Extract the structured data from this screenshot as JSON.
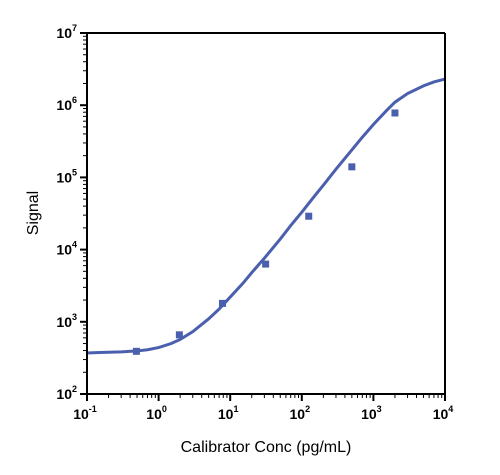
{
  "chart_data": {
    "type": "scatter",
    "xlabel": "Calibrator Conc (pg/mL)",
    "ylabel": "Signal",
    "xscale": "log",
    "yscale": "log",
    "xlim": [
      0.1,
      10000
    ],
    "ylim": [
      100,
      10000000
    ],
    "grid": false,
    "legend": "none",
    "x_ticks": [
      {
        "base": "10",
        "exp": "-1",
        "value": 0.1
      },
      {
        "base": "10",
        "exp": "0",
        "value": 1
      },
      {
        "base": "10",
        "exp": "1",
        "value": 10
      },
      {
        "base": "10",
        "exp": "2",
        "value": 100
      },
      {
        "base": "10",
        "exp": "3",
        "value": 1000
      },
      {
        "base": "10",
        "exp": "4",
        "value": 10000
      }
    ],
    "y_ticks": [
      {
        "base": "10",
        "exp": "2",
        "value": 100
      },
      {
        "base": "10",
        "exp": "3",
        "value": 1000
      },
      {
        "base": "10",
        "exp": "4",
        "value": 10000
      },
      {
        "base": "10",
        "exp": "5",
        "value": 100000
      },
      {
        "base": "10",
        "exp": "6",
        "value": 1000000
      },
      {
        "base": "10",
        "exp": "7",
        "value": 10000000
      }
    ],
    "series": [
      {
        "type": "scatter",
        "x": [
          0.49,
          1.95,
          7.8,
          31.25,
          125,
          500,
          2000
        ],
        "y": [
          390,
          660,
          1800,
          6300,
          29000,
          140000,
          780000
        ]
      },
      {
        "type": "line",
        "x": [
          0.1,
          0.15,
          0.2,
          0.3,
          0.5,
          0.7,
          1,
          1.5,
          2,
          3,
          5,
          7,
          10,
          15,
          20,
          30,
          50,
          70,
          100,
          150,
          200,
          300,
          500,
          700,
          1000,
          1500,
          2000,
          3000,
          5000,
          7000,
          10000
        ],
        "y": [
          370,
          375,
          378,
          383,
          395,
          410,
          440,
          500,
          570,
          730,
          1100,
          1500,
          2200,
          3400,
          4800,
          7600,
          14000,
          21500,
          33000,
          55000,
          78000,
          130000,
          240000,
          360000,
          540000,
          830000,
          1100000,
          1450000,
          1850000,
          2100000,
          2300000
        ]
      }
    ],
    "colors": {
      "series": "#4a5fad",
      "axis": "#000000"
    }
  }
}
